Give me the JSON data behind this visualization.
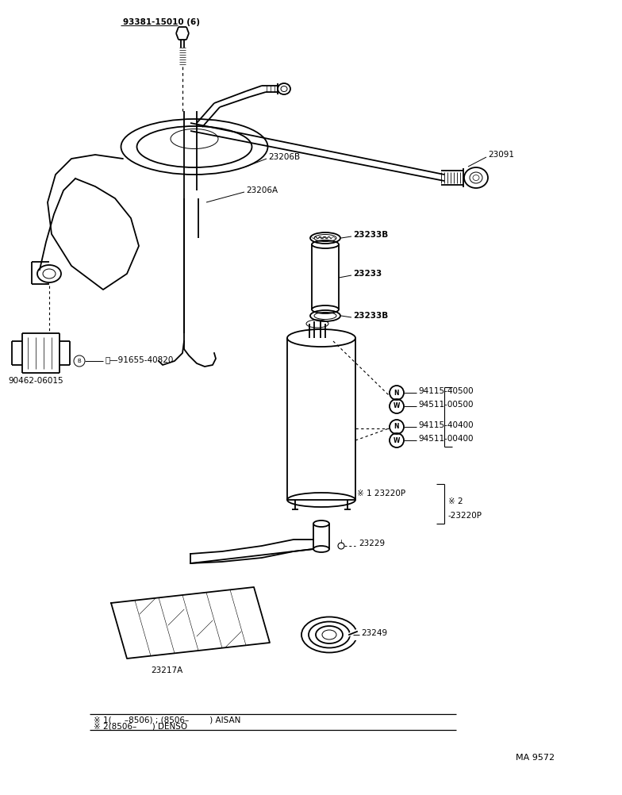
{
  "background_color": "#ffffff",
  "line_color": "#000000",
  "fig_width": 7.84,
  "fig_height": 10.02,
  "dpi": 100,
  "labels": {
    "screw_top": "93381-15010 (6)",
    "part_23206B": "23206B",
    "part_23091": "23091",
    "part_23206A": "23206A",
    "part_23233B_top": "23233B",
    "part_23233": "23233",
    "part_23233B_bot": "23233B",
    "part_94115_40500": "94115-40500",
    "part_94511_00500": "94511-00500",
    "part_94115_40400": "94115-40400",
    "part_94511_00400": "94511-00400",
    "part_23220P_1": "※ 1 23220P",
    "part_23220P_2": "※ 2",
    "part_23220P_2b": "-23220P",
    "part_23229": "23229",
    "part_23249": "23249",
    "part_23217A": "23217A",
    "part_90462": "90462-06015",
    "part_91655": "Ⓑ—91655-40820",
    "footer_line1": "※ 1(     –8506) ; (8506–        ) AISAN",
    "footer_line2": "※ 2(8506–      ) DENSO",
    "ref_code": "MA 9572"
  }
}
